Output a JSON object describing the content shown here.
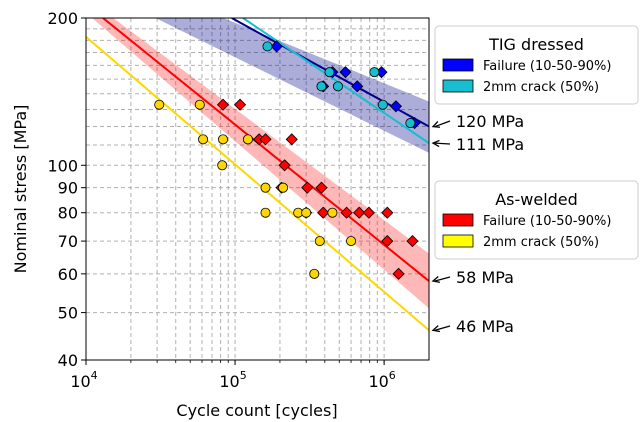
{
  "chart_data": {
    "type": "scatter",
    "xlabel": "Cycle count [cycles]",
    "ylabel": "Nominal stress [MPa]",
    "xscale": "log",
    "yscale": "log",
    "xlim": [
      10000,
      2000000
    ],
    "ylim": [
      40,
      200
    ],
    "grid": true,
    "x_ticks": [
      {
        "value": 10000,
        "base": "10",
        "exp": "4"
      },
      {
        "value": 100000,
        "base": "10",
        "exp": "5"
      },
      {
        "value": 1000000,
        "base": "10",
        "exp": "6"
      }
    ],
    "y_ticks": [
      {
        "value": 40,
        "label": "40"
      },
      {
        "value": 50,
        "label": "50"
      },
      {
        "value": 60,
        "label": "60"
      },
      {
        "value": 70,
        "label": "70"
      },
      {
        "value": 80,
        "label": "80"
      },
      {
        "value": 90,
        "label": "90"
      },
      {
        "value": 100,
        "label": "100"
      },
      {
        "value": 200,
        "label": "200"
      }
    ],
    "curve_annotations": [
      {
        "text": "120 MPa",
        "y": 120,
        "x": 2000000
      },
      {
        "text": "111 MPa",
        "y": 111,
        "x": 2000000
      },
      {
        "text": "58 MPa",
        "y": 58,
        "x": 2000000
      },
      {
        "text": "46 MPa",
        "y": 46,
        "x": 2000000
      }
    ],
    "legends": [
      {
        "title": "TIG dressed",
        "placement": "top-right",
        "entries": [
          {
            "label": "Failure (10-50-90%)",
            "color": "#0000ff"
          },
          {
            "label": "2mm crack (50%)",
            "color": "#17becf"
          }
        ]
      },
      {
        "title": "As-welded",
        "placement": "center-right",
        "entries": [
          {
            "label": "Failure (10-50-90%)",
            "color": "#ff0000"
          },
          {
            "label": "2mm crack (50%)",
            "color": "#ffff00"
          }
        ]
      }
    ],
    "bands": [
      {
        "group": "TIG dressed",
        "color": "#00008b",
        "opacity": 0.32,
        "upper": [
          [
            10000,
            260
          ],
          [
            2000000,
            135
          ]
        ],
        "lower": [
          [
            10000,
            235
          ],
          [
            2000000,
            106
          ]
        ]
      },
      {
        "group": "As-welded",
        "color": "#ff0000",
        "opacity": 0.28,
        "upper": [
          [
            10000,
            220
          ],
          [
            2000000,
            66
          ]
        ],
        "lower": [
          [
            10000,
            205
          ],
          [
            2000000,
            51
          ]
        ]
      }
    ],
    "lines": [
      {
        "group": "TIG dressed",
        "kind": "failure",
        "color": "#00008b",
        "width": 2,
        "points": [
          [
            95000,
            200
          ],
          [
            2000000,
            120
          ]
        ]
      },
      {
        "group": "TIG dressed",
        "kind": "crack",
        "color": "#17becf",
        "width": 2,
        "points": [
          [
            113000,
            200
          ],
          [
            2000000,
            111
          ]
        ]
      },
      {
        "group": "As-welded",
        "kind": "failure",
        "color": "#ff0000",
        "width": 2,
        "points": [
          [
            13000,
            200
          ],
          [
            2000000,
            58
          ]
        ]
      },
      {
        "group": "As-welded",
        "kind": "crack",
        "color": "#ffd700",
        "width": 2,
        "points": [
          [
            10000,
            183
          ],
          [
            2000000,
            46
          ]
        ]
      }
    ],
    "series": [
      {
        "name": "TIG dressed - Failure (10-50-90%)",
        "marker": "diamond",
        "color": "#0000ff",
        "points": [
          [
            190000,
            175
          ],
          [
            450000,
            155
          ],
          [
            550000,
            155
          ],
          [
            660000,
            145
          ],
          [
            390000,
            145
          ],
          [
            960000,
            155
          ],
          [
            1200000,
            132
          ],
          [
            1600000,
            122
          ]
        ]
      },
      {
        "name": "TIG dressed - 2mm crack (50%)",
        "marker": "circle",
        "color": "#17becf",
        "points": [
          [
            165000,
            175
          ],
          [
            430000,
            155
          ],
          [
            380000,
            145
          ],
          [
            490000,
            145
          ],
          [
            860000,
            155
          ],
          [
            980000,
            133
          ],
          [
            1500000,
            122
          ]
        ]
      },
      {
        "name": "As-welded - Failure (10-50-90%)",
        "marker": "diamond",
        "color": "#ff0000",
        "points": [
          [
            83000,
            133
          ],
          [
            108000,
            133
          ],
          [
            145000,
            113
          ],
          [
            160000,
            113
          ],
          [
            215000,
            100
          ],
          [
            240000,
            113
          ],
          [
            205000,
            90
          ],
          [
            305000,
            90
          ],
          [
            380000,
            90
          ],
          [
            300000,
            80
          ],
          [
            390000,
            80
          ],
          [
            560000,
            80
          ],
          [
            680000,
            80
          ],
          [
            790000,
            80
          ],
          [
            1050000,
            80
          ],
          [
            1050000,
            70
          ],
          [
            1550000,
            70
          ],
          [
            1250000,
            60
          ]
        ]
      },
      {
        "name": "As-welded - 2mm crack (50%)",
        "marker": "circle",
        "color": "#ffd700",
        "points": [
          [
            31000,
            133
          ],
          [
            58000,
            133
          ],
          [
            61000,
            113
          ],
          [
            83000,
            113
          ],
          [
            122000,
            113
          ],
          [
            82000,
            100
          ],
          [
            160000,
            90
          ],
          [
            210000,
            90
          ],
          [
            160000,
            80
          ],
          [
            265000,
            80
          ],
          [
            300000,
            80
          ],
          [
            450000,
            80
          ],
          [
            370000,
            70
          ],
          [
            600000,
            70
          ],
          [
            340000,
            60
          ]
        ]
      }
    ]
  }
}
